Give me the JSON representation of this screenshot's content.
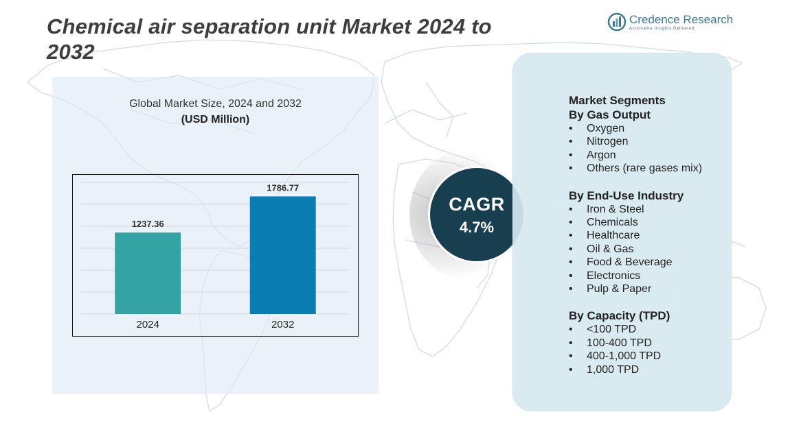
{
  "header": {
    "title": "Chemical air separation unit Market 2024 to 2032"
  },
  "logo": {
    "name": "Credence Research",
    "tagline": "Actionable Insights Delivered",
    "mark_icon": "credence-logo-icon"
  },
  "chart_data": {
    "type": "bar",
    "title": "Global Market Size, 2024 and 2032",
    "subtitle": "(USD Million)",
    "categories": [
      "2024",
      "2032"
    ],
    "values": [
      1237.36,
      1786.77
    ],
    "colors": [
      "#35a3a3",
      "#0a7eb2"
    ],
    "ylim": [
      0,
      2000
    ],
    "grid": true,
    "xlabel": "",
    "ylabel": ""
  },
  "cagr": {
    "label": "CAGR",
    "value": "4.7%"
  },
  "segments": {
    "heading": "Market Segments",
    "groups": [
      {
        "title": "By Gas Output",
        "items": [
          "Oxygen",
          "Nitrogen",
          "Argon",
          "Others (rare gases mix)"
        ]
      },
      {
        "title": "By End-Use Industry",
        "items": [
          "Iron & Steel",
          "Chemicals",
          "Healthcare",
          "Oil & Gas",
          "Food & Beverage",
          "Electronics",
          "Pulp & Paper"
        ]
      },
      {
        "title": "By Capacity (TPD)",
        "items": [
          "<100 TPD",
          "100-400 TPD",
          "400-1,000 TPD",
          "1,000 TPD"
        ]
      }
    ],
    "bullet": "•"
  },
  "colors": {
    "cagr_circle": "#183f4f",
    "title_text": "#3d3d3d",
    "panel": "#dde9f6",
    "segment_panel": "#d6e8f0"
  }
}
